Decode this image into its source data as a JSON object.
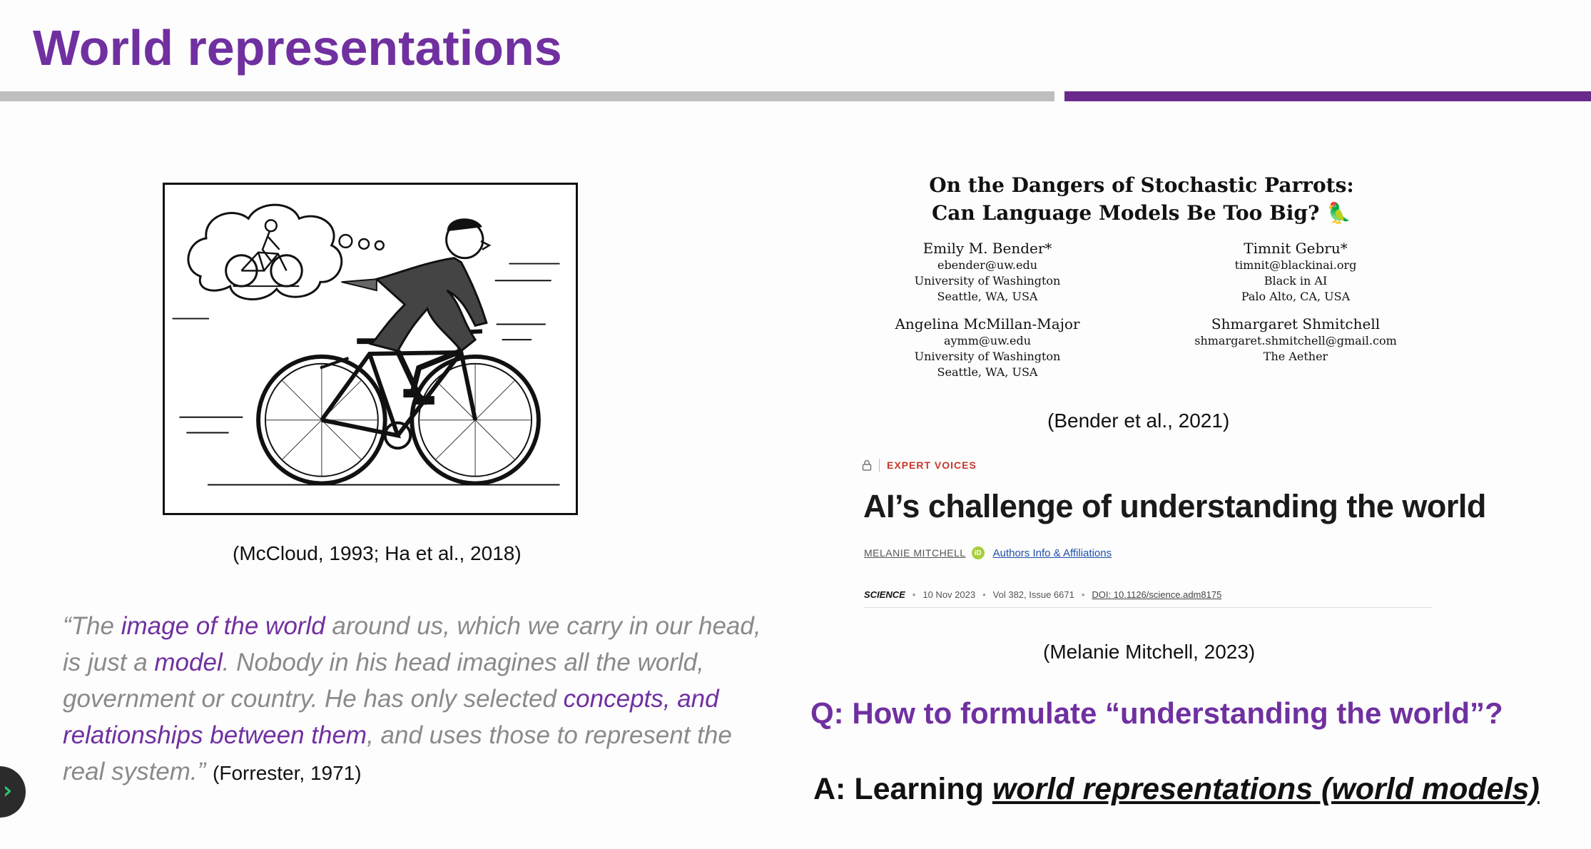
{
  "slide": {
    "title": "World representations",
    "accent_color": "#7030a0",
    "divider_gray": "#bfbfbf",
    "divider_purple": "#6a2a8c"
  },
  "comic": {
    "caption": "(McCloud, 1993; Ha et al., 2018)"
  },
  "quote": {
    "open": "“The ",
    "hl1": "image of the world",
    "t2": " around us, which we carry in our head, is just a ",
    "hl2": "model",
    "t3": ". Nobody in his head imagines all the world, government or country. He has only selected ",
    "hl3": "concepts, and relationships between them",
    "t4": ", and uses those to represent the real system.”",
    "citation": "(Forrester, 1971)"
  },
  "paper1": {
    "title_line1": "On the Dangers of Stochastic Parrots:",
    "title_line2": "Can Language Models Be Too Big? 🦜",
    "authors": [
      {
        "name": "Emily M. Bender*",
        "email": "ebender@uw.edu",
        "affil": "University of Washington",
        "loc": "Seattle, WA, USA"
      },
      {
        "name": "Timnit Gebru*",
        "email": "timnit@blackinai.org",
        "affil": "Black in AI",
        "loc": "Palo Alto, CA, USA"
      },
      {
        "name": "Angelina McMillan-Major",
        "email": "aymm@uw.edu",
        "affil": "University of Washington",
        "loc": "Seattle, WA, USA"
      },
      {
        "name": "Shmargaret Shmitchell",
        "email": "shmargaret.shmitchell@gmail.com",
        "affil": "The Aether",
        "loc": ""
      }
    ],
    "caption": "(Bender et al., 2021)"
  },
  "paper2": {
    "section_label": "EXPERT VOICES",
    "headline": "AI’s challenge of understanding the world",
    "author": "MELANIE MITCHELL",
    "orcid_label": "iD",
    "authors_link": "Authors Info & Affiliations",
    "journal": "SCIENCE",
    "date": "10 Nov 2023",
    "volume": "Vol 382, Issue 6671",
    "doi": "DOI: 10.1126/science.adm8175",
    "sep": "•",
    "caption": "(Melanie Mitchell, 2023)"
  },
  "qa": {
    "question": "Q: How to formulate “understanding the world”?",
    "answer_prefix": "A: Learning ",
    "answer_em": "world representations (world models)"
  },
  "launcher": {
    "glyph": "›"
  }
}
